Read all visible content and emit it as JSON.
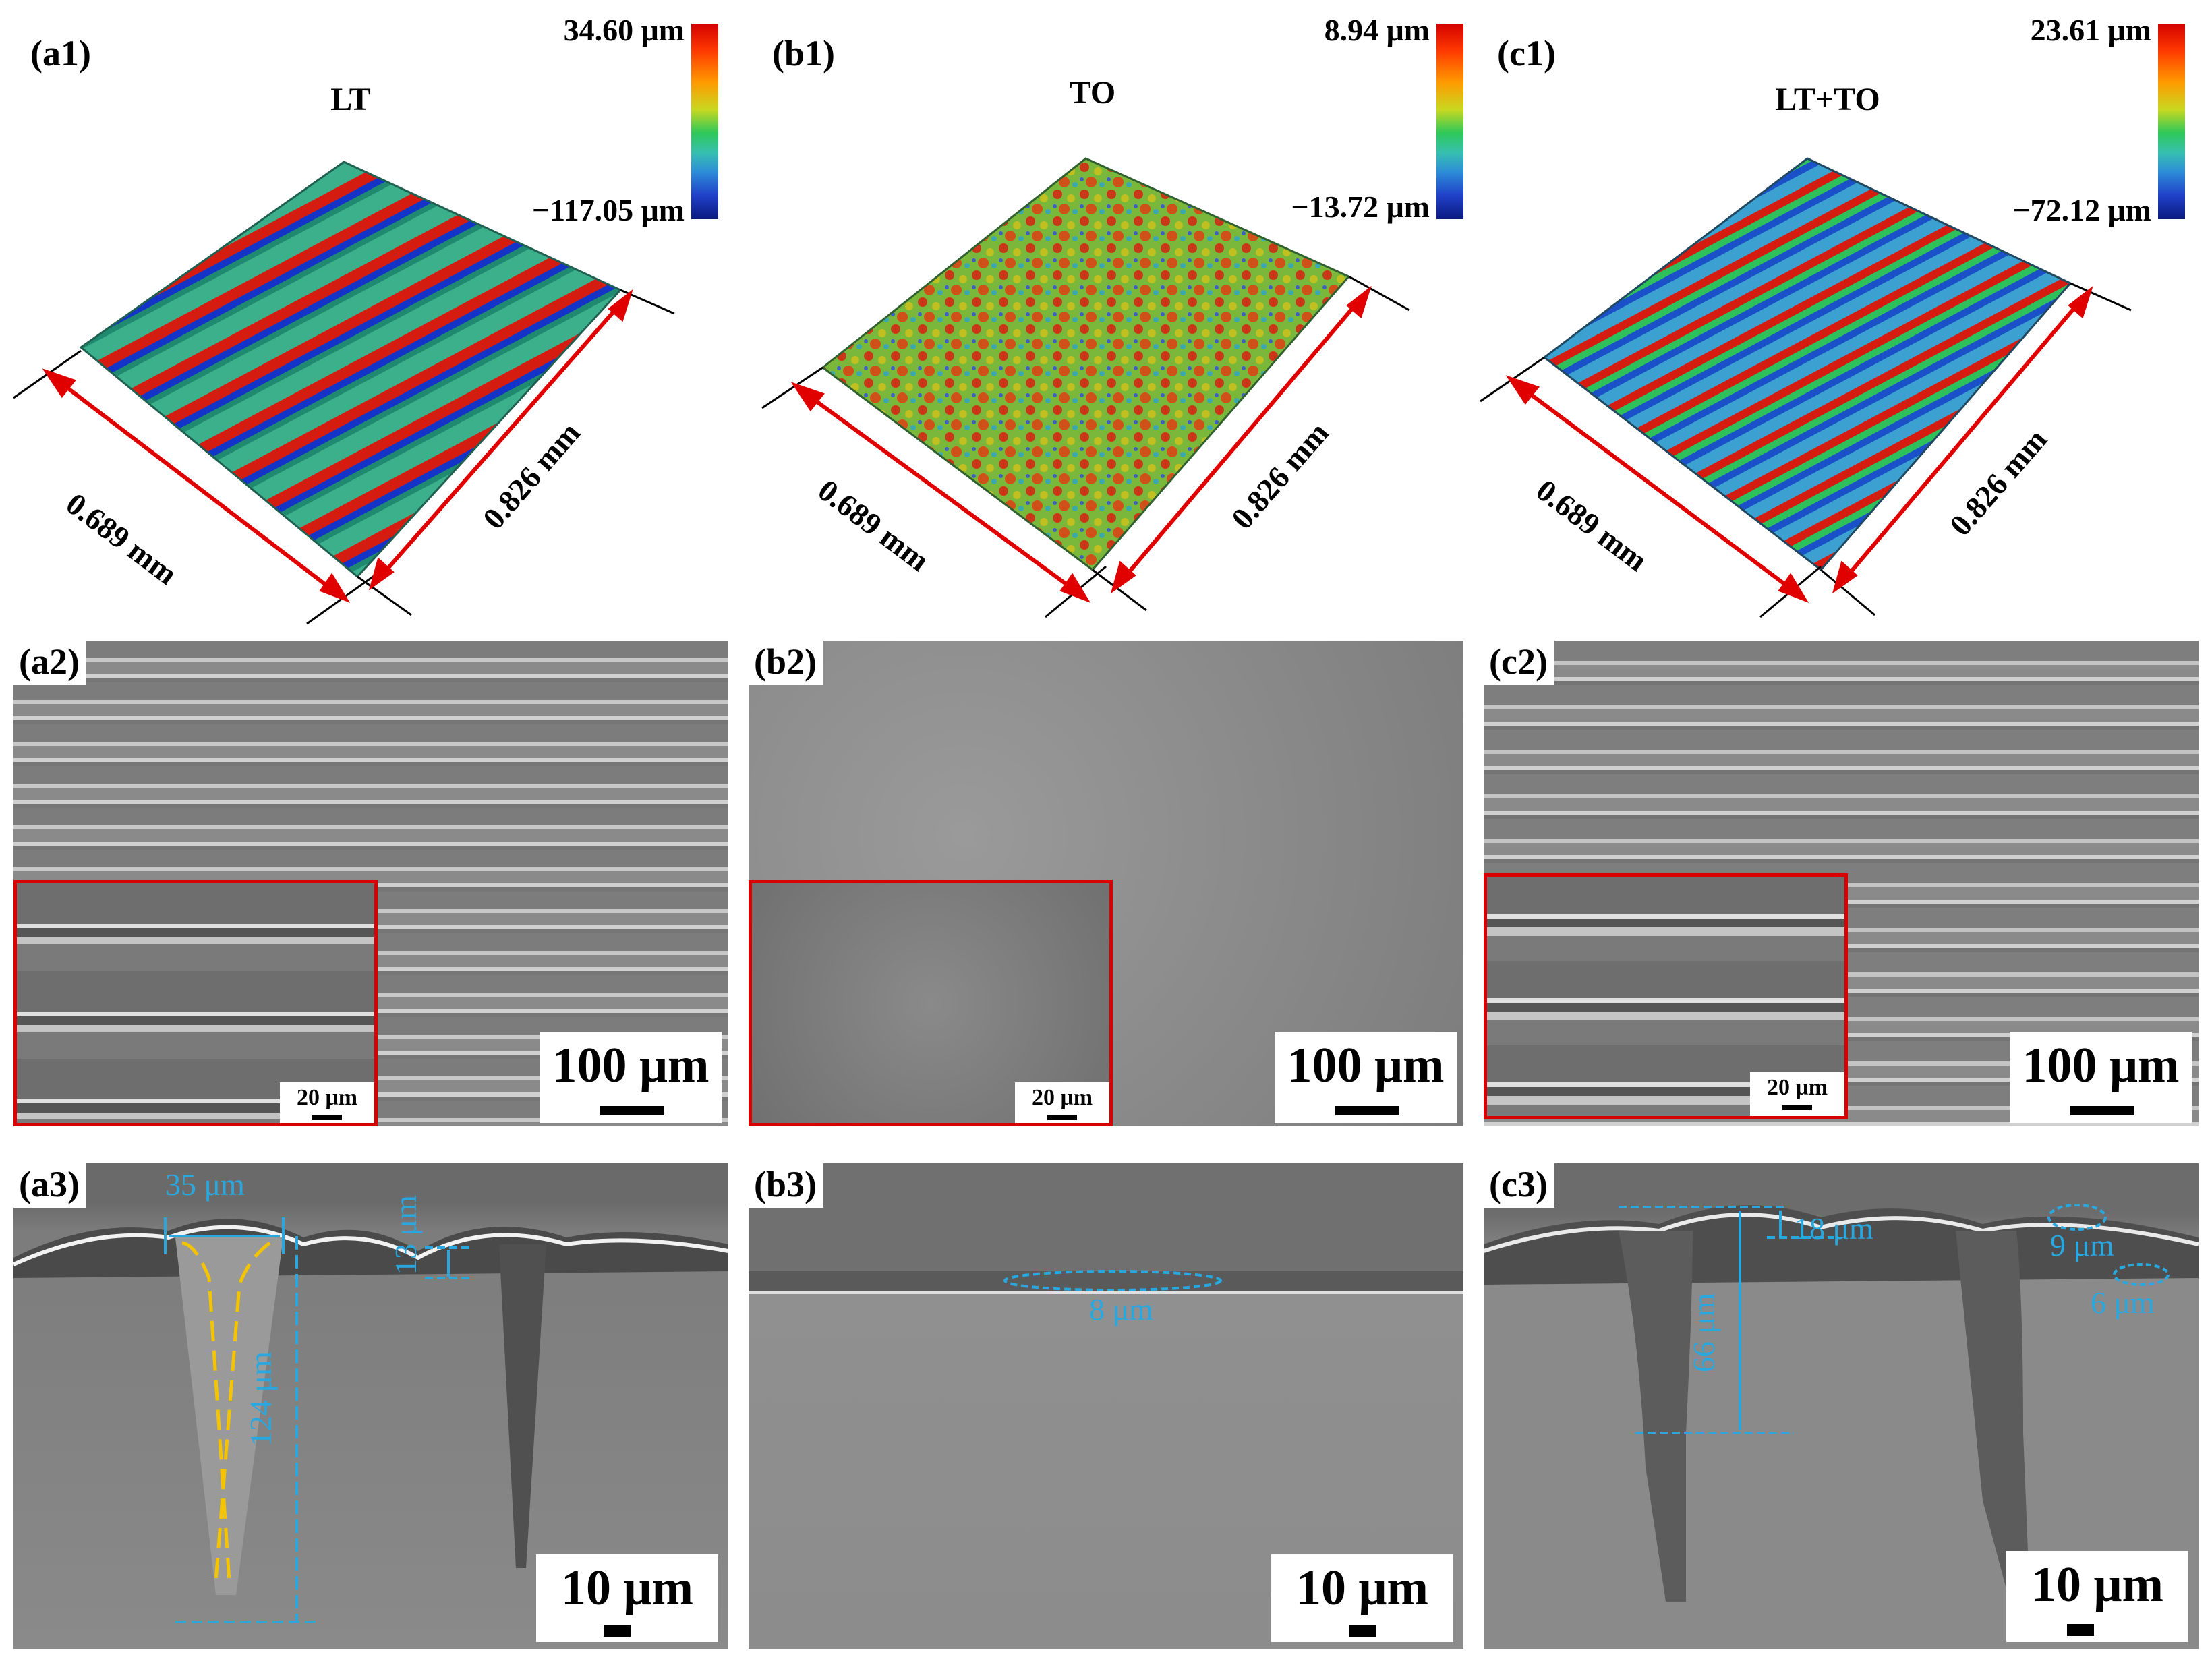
{
  "row1": {
    "a1": {
      "label": "(a1)",
      "title": "LT",
      "cmax": "34.60 μm",
      "cmin": "−117.05 μm",
      "dim_x": "0.689 mm",
      "dim_y": "0.826 mm"
    },
    "b1": {
      "label": "(b1)",
      "title": "TO",
      "cmax": "8.94 μm",
      "cmin": "−13.72 μm",
      "dim_x": "0.689 mm",
      "dim_y": "0.826 mm"
    },
    "c1": {
      "label": "(c1)",
      "title": "LT+TO",
      "cmax": "23.61 μm",
      "cmin": "−72.12 μm",
      "dim_x": "0.689 mm",
      "dim_y": "0.826 mm"
    }
  },
  "row2": {
    "a2": {
      "label": "(a2)",
      "scale": "100 μm",
      "inset_scale": "20 μm"
    },
    "b2": {
      "label": "(b2)",
      "scale": "100 μm",
      "inset_scale": "20 μm"
    },
    "c2": {
      "label": "(c2)",
      "scale": "100 μm",
      "inset_scale": "20 μm"
    }
  },
  "row3": {
    "a3": {
      "label": "(a3)",
      "scale": "10 μm",
      "m_width": "35 μm",
      "m_depth": "124 μm",
      "m_small": "13 μm"
    },
    "b3": {
      "label": "(b3)",
      "scale": "10 μm",
      "m_layer": "8 μm"
    },
    "c3": {
      "label": "(c3)",
      "scale": "10 μm",
      "m_depth": "66 μm",
      "m_top": "18 μm",
      "m_9": "9 μm",
      "m_6": "6 μm"
    }
  },
  "colors": {
    "dimension": "#e00000",
    "measure": "#29a8e0",
    "outline": "#f5c400",
    "inset_border": "#d80000"
  }
}
